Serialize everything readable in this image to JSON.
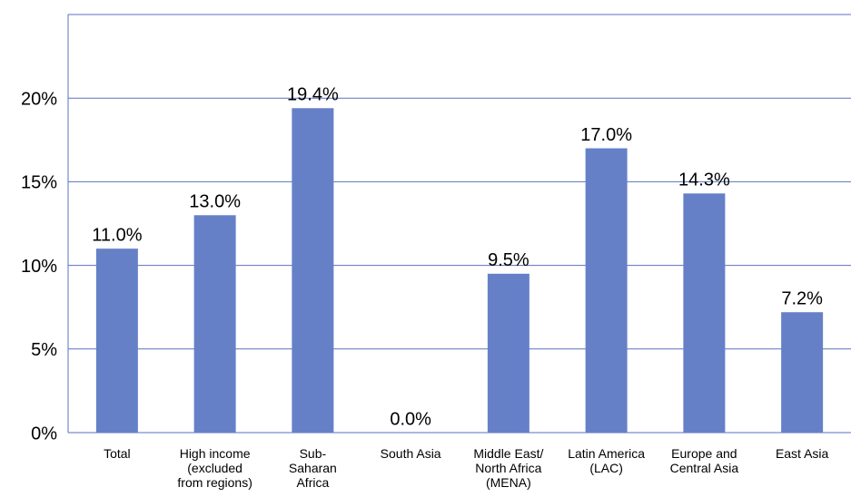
{
  "chart_data": {
    "type": "bar",
    "categories": [
      "Total",
      "High income\n(excluded\nfrom regions)",
      "Sub-\nSaharan\nAfrica",
      "South Asia",
      "Middle East/\nNorth Africa\n(MENA)",
      "Latin America\n(LAC)",
      "Europe and\nCentral Asia",
      "East Asia"
    ],
    "values": [
      11.0,
      13.0,
      19.4,
      0.0,
      9.5,
      17.0,
      14.3,
      7.2
    ],
    "value_labels": [
      "11.0%",
      "13.0%",
      "19.4%",
      "0.0%",
      "9.5%",
      "17.0%",
      "14.3%",
      "7.2%"
    ],
    "color": "#6680c8",
    "ylim": [
      0,
      25
    ],
    "yticks": [
      {
        "value": 0,
        "label": "0%"
      },
      {
        "value": 5,
        "label": "5%"
      },
      {
        "value": 10,
        "label": "10%"
      },
      {
        "value": 15,
        "label": "15%"
      },
      {
        "value": 20,
        "label": "20%"
      }
    ],
    "grid": true
  }
}
